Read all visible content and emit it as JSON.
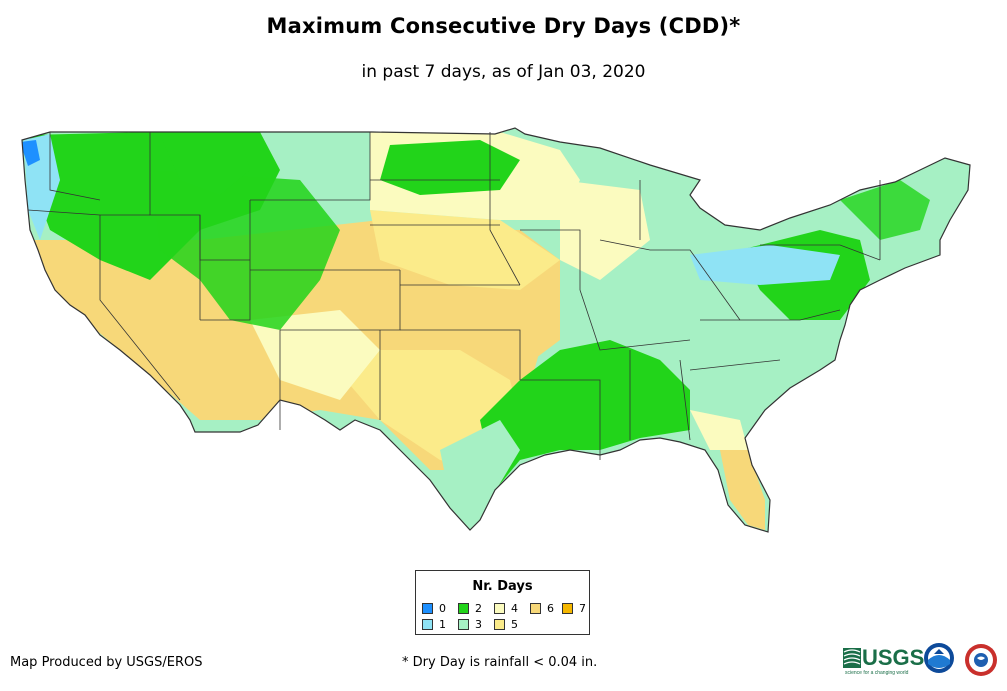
{
  "header": {
    "title": "Maximum Consecutive Dry Days (CDD)*",
    "subtitle": "in past 7 days, as of Jan 03, 2020"
  },
  "legend": {
    "title": "Nr. Days",
    "items": [
      {
        "label": "0",
        "color": "#1e90ff"
      },
      {
        "label": "1",
        "color": "#8fe3f5"
      },
      {
        "label": "2",
        "color": "#22d41a"
      },
      {
        "label": "3",
        "color": "#a6f0c4"
      },
      {
        "label": "4",
        "color": "#fbfbbf"
      },
      {
        "label": "5",
        "color": "#fbeb8a"
      },
      {
        "label": "6",
        "color": "#f7d879"
      },
      {
        "label": "7",
        "color": "#f5b700"
      }
    ]
  },
  "footer": {
    "credit": "Map Produced by USGS/EROS",
    "note": "* Dry Day is rainfall < 0.04 in."
  },
  "logos": {
    "usgs": "USGS",
    "usgs_tagline": "science for a changing world",
    "noaa": "noaa-logo-icon",
    "nws": "nws-logo-icon"
  },
  "colors": {
    "state_border": "#333333",
    "wet_0": "#1e90ff",
    "wet_1": "#8fe3f5",
    "dry_2": "#22d41a",
    "dry_3": "#a6f0c4",
    "dry_4": "#fbfbbf",
    "dry_5": "#fbeb8a",
    "dry_6": "#f7d879"
  }
}
